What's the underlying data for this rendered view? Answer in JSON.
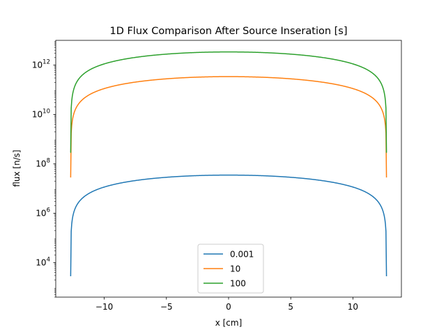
{
  "chart_data": {
    "type": "line",
    "title": "1D Flux Comparison After Source Inseration [s]",
    "xlabel": "x [cm]",
    "ylabel": "flux [n/s]",
    "xlim": [
      -13.9,
      13.9
    ],
    "ylim": [
      400,
      10000000000000.0
    ],
    "yscale": "log",
    "xticks": [
      -10,
      -5,
      0,
      5,
      10
    ],
    "xtick_labels": [
      "−10",
      "−5",
      "0",
      "5",
      "10"
    ],
    "yticks": [
      10000,
      1000000,
      100000000,
      10000000000,
      1000000000000
    ],
    "ytick_labels": [
      {
        "base": "10",
        "exp": "4"
      },
      {
        "base": "10",
        "exp": "6"
      },
      {
        "base": "10",
        "exp": "8"
      },
      {
        "base": "10",
        "exp": "10"
      },
      {
        "base": "10",
        "exp": "12"
      }
    ],
    "grid": false,
    "legend_position": "bottom-center",
    "half_width": 12.7,
    "series": [
      {
        "name": "0.001",
        "color": "#1f77b4",
        "peak": 35000000.0,
        "edge": 2800
      },
      {
        "name": "10",
        "color": "#ff7f0e",
        "peak": 340000000000.0,
        "edge": 28000000.0
      },
      {
        "name": "100",
        "color": "#2ca02c",
        "peak": 3400000000000.0,
        "edge": 280000000.0
      }
    ]
  }
}
